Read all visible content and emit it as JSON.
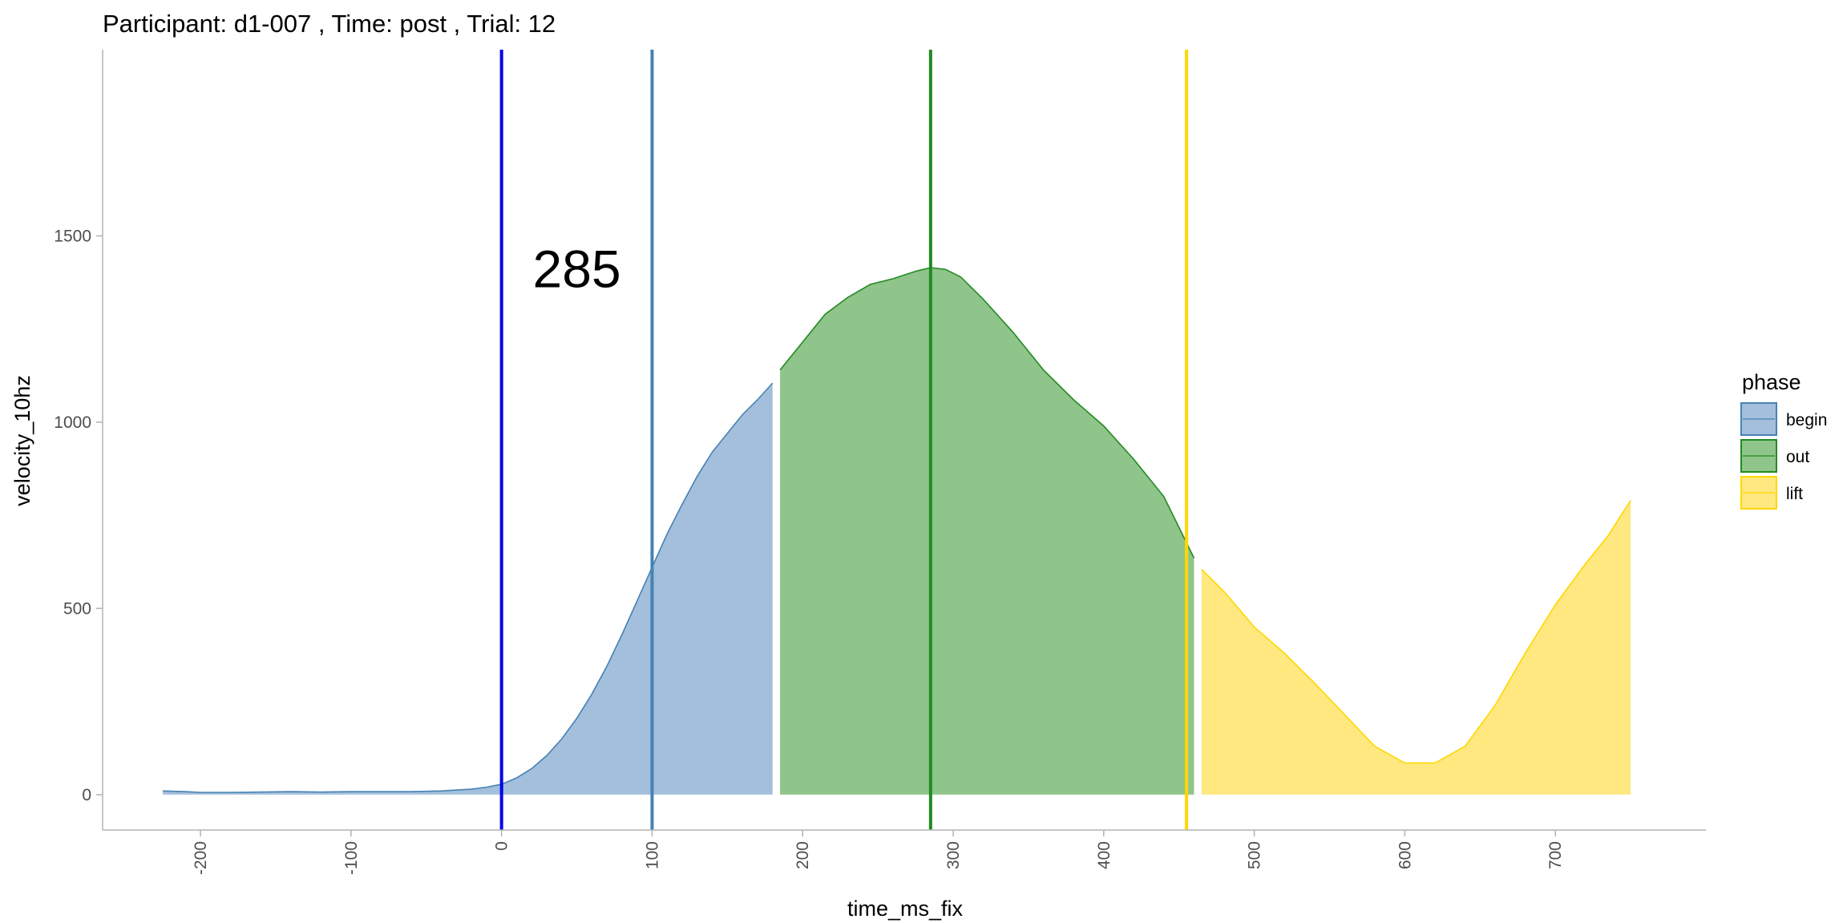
{
  "chart_data": {
    "type": "area",
    "title": "Participant:  d1-007 , Time: post , Trial:  12",
    "xlabel": "time_ms_fix",
    "ylabel": "velocity_10hz",
    "xlim": [
      -265,
      800
    ],
    "ylim": [
      -95,
      2000
    ],
    "x_ticks": [
      -200,
      -100,
      0,
      100,
      200,
      300,
      400,
      500,
      600,
      700
    ],
    "y_ticks": [
      0,
      500,
      1000,
      1500
    ],
    "x_tick_rotation": "vertical",
    "grid": false,
    "annotation": {
      "text": "285",
      "x": 50,
      "y": 1410
    },
    "legend": {
      "title": "phase",
      "position": "right",
      "entries": [
        {
          "label": "begin",
          "fill": "#a3bfdb",
          "stroke": "#4682b4"
        },
        {
          "label": "out",
          "fill": "#8fc48a",
          "stroke": "#228b22"
        },
        {
          "label": "lift",
          "fill": "#fee87f",
          "stroke": "#ffd700"
        }
      ]
    },
    "vlines": [
      {
        "x": 0,
        "color": "#0000ee"
      },
      {
        "x": 100,
        "color": "#4682b4"
      },
      {
        "x": 285,
        "color": "#228b22"
      },
      {
        "x": 455,
        "color": "#ffd700"
      }
    ],
    "series": [
      {
        "name": "begin",
        "fill": "#a3bfdb",
        "stroke": "#4682b4",
        "x": [
          -225,
          -210,
          -200,
          -180,
          -160,
          -140,
          -120,
          -100,
          -80,
          -60,
          -40,
          -20,
          -10,
          0,
          10,
          20,
          30,
          40,
          50,
          60,
          70,
          80,
          90,
          100,
          110,
          120,
          130,
          140,
          150,
          160,
          170,
          180
        ],
        "y": [
          10,
          8,
          6,
          6,
          7,
          8,
          7,
          8,
          8,
          8,
          10,
          15,
          20,
          28,
          45,
          70,
          105,
          150,
          205,
          270,
          345,
          430,
          520,
          610,
          700,
          780,
          855,
          920,
          970,
          1020,
          1060,
          1105
        ]
      },
      {
        "name": "out",
        "fill": "#8fc48a",
        "stroke": "#228b22",
        "x": [
          185,
          200,
          215,
          230,
          245,
          260,
          275,
          285,
          295,
          305,
          320,
          340,
          360,
          380,
          400,
          420,
          440,
          460
        ],
        "y": [
          1140,
          1215,
          1290,
          1335,
          1370,
          1385,
          1405,
          1415,
          1410,
          1390,
          1330,
          1240,
          1140,
          1060,
          990,
          900,
          800,
          635
        ]
      },
      {
        "name": "lift",
        "fill": "#fee87f",
        "stroke": "#ffd700",
        "x": [
          465,
          480,
          500,
          520,
          540,
          560,
          580,
          600,
          620,
          640,
          660,
          680,
          700,
          720,
          735,
          750
        ],
        "y": [
          605,
          545,
          450,
          380,
          300,
          215,
          130,
          85,
          85,
          130,
          240,
          380,
          510,
          620,
          695,
          790
        ]
      }
    ]
  }
}
